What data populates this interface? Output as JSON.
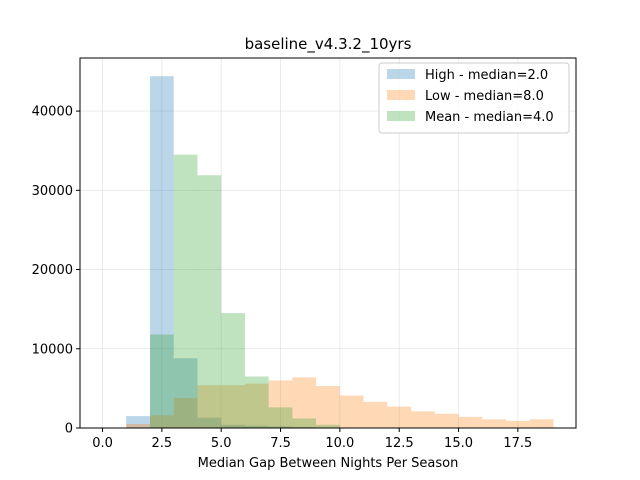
{
  "chart_data": {
    "type": "histogram",
    "title": "baseline_v4.3.2_10yrs",
    "xlabel": "Median Gap Between Nights Per Season",
    "ylabel": "",
    "xlim": [
      -0.95,
      19.95
    ],
    "ylim": [
      0,
      46700
    ],
    "grid": true,
    "legend_position": "top-right",
    "bin_width": 1,
    "series": [
      {
        "name": "High - median=2.0",
        "color": "#1f77b4",
        "opacity": 0.3,
        "bins": [
          {
            "x0": 1,
            "x1": 2,
            "value": 1500
          },
          {
            "x0": 2,
            "x1": 3,
            "value": 44400
          },
          {
            "x0": 3,
            "x1": 4,
            "value": 8800
          },
          {
            "x0": 4,
            "x1": 5,
            "value": 1300
          },
          {
            "x0": 5,
            "x1": 6,
            "value": 400
          },
          {
            "x0": 6,
            "x1": 7,
            "value": 300
          },
          {
            "x0": 7,
            "x1": 8,
            "value": 200
          },
          {
            "x0": 8,
            "x1": 9,
            "value": 100
          }
        ]
      },
      {
        "name": "Low - median=8.0",
        "color": "#ff7f0e",
        "opacity": 0.3,
        "bins": [
          {
            "x0": 1,
            "x1": 2,
            "value": 500
          },
          {
            "x0": 2,
            "x1": 3,
            "value": 1600
          },
          {
            "x0": 3,
            "x1": 4,
            "value": 3800
          },
          {
            "x0": 4,
            "x1": 5,
            "value": 5400
          },
          {
            "x0": 5,
            "x1": 6,
            "value": 5400
          },
          {
            "x0": 6,
            "x1": 7,
            "value": 5600
          },
          {
            "x0": 7,
            "x1": 8,
            "value": 6000
          },
          {
            "x0": 8,
            "x1": 9,
            "value": 6400
          },
          {
            "x0": 9,
            "x1": 10,
            "value": 5300
          },
          {
            "x0": 10,
            "x1": 11,
            "value": 4100
          },
          {
            "x0": 11,
            "x1": 12,
            "value": 3300
          },
          {
            "x0": 12,
            "x1": 13,
            "value": 2700
          },
          {
            "x0": 13,
            "x1": 14,
            "value": 2100
          },
          {
            "x0": 14,
            "x1": 15,
            "value": 1800
          },
          {
            "x0": 15,
            "x1": 16,
            "value": 1400
          },
          {
            "x0": 16,
            "x1": 17,
            "value": 1100
          },
          {
            "x0": 17,
            "x1": 18,
            "value": 900
          },
          {
            "x0": 18,
            "x1": 19,
            "value": 1100
          }
        ]
      },
      {
        "name": "Mean - median=4.0",
        "color": "#2ca02c",
        "opacity": 0.3,
        "bins": [
          {
            "x0": 2,
            "x1": 3,
            "value": 11800
          },
          {
            "x0": 3,
            "x1": 4,
            "value": 34500
          },
          {
            "x0": 4,
            "x1": 5,
            "value": 31900
          },
          {
            "x0": 5,
            "x1": 6,
            "value": 14500
          },
          {
            "x0": 6,
            "x1": 7,
            "value": 6500
          },
          {
            "x0": 7,
            "x1": 8,
            "value": 2600
          },
          {
            "x0": 8,
            "x1": 9,
            "value": 1200
          },
          {
            "x0": 9,
            "x1": 10,
            "value": 400
          }
        ]
      }
    ],
    "x_ticks": [
      {
        "value": 0.0,
        "label": "0.0"
      },
      {
        "value": 2.5,
        "label": "2.5"
      },
      {
        "value": 5.0,
        "label": "5.0"
      },
      {
        "value": 7.5,
        "label": "7.5"
      },
      {
        "value": 10.0,
        "label": "10.0"
      },
      {
        "value": 12.5,
        "label": "12.5"
      },
      {
        "value": 15.0,
        "label": "15.0"
      },
      {
        "value": 17.5,
        "label": "17.5"
      }
    ],
    "y_ticks": [
      {
        "value": 0,
        "label": "0"
      },
      {
        "value": 10000,
        "label": "10000"
      },
      {
        "value": 20000,
        "label": "20000"
      },
      {
        "value": 30000,
        "label": "30000"
      },
      {
        "value": 40000,
        "label": "40000"
      }
    ]
  }
}
